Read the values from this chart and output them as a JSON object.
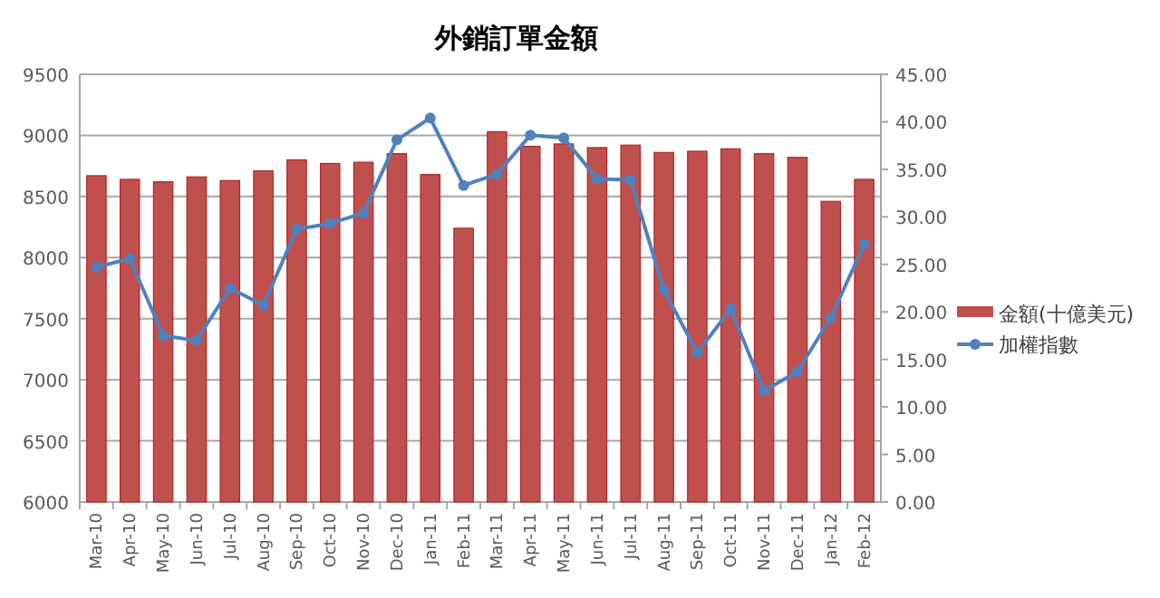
{
  "chart_data": {
    "type": "bar",
    "title": "外銷訂單金額",
    "categories": [
      "Mar-10",
      "Apr-10",
      "May-10",
      "Jun-10",
      "Jul-10",
      "Aug-10",
      "Sep-10",
      "Oct-10",
      "Nov-10",
      "Dec-10",
      "Jan-11",
      "Feb-11",
      "Mar-11",
      "Apr-11",
      "May-11",
      "Jun-11",
      "Jul-11",
      "Aug-11",
      "Sep-11",
      "Oct-11",
      "Nov-11",
      "Dec-11",
      "Jan-12",
      "Feb-12"
    ],
    "series": [
      {
        "name": "金額(十億美元)",
        "color": "#c0504d",
        "values": [
          8670,
          8640,
          8620,
          8660,
          8630,
          8710,
          8800,
          8770,
          8780,
          8850,
          8680,
          8240,
          9030,
          8910,
          8930,
          8900,
          8920,
          8860,
          8870,
          8890,
          8850,
          8820,
          8460,
          8640
        ]
      },
      {
        "name": "加權指數",
        "type": "line",
        "axis": "y2",
        "color": "#4f81bd",
        "values": [
          24.7,
          25.6,
          17.5,
          17.0,
          22.5,
          20.7,
          28.7,
          29.3,
          30.4,
          38.1,
          40.4,
          33.3,
          34.5,
          38.6,
          38.3,
          34.0,
          33.9,
          22.3,
          15.7,
          20.3,
          11.7,
          13.7,
          19.4,
          27.1
        ]
      }
    ],
    "ylim": [
      6000,
      9500
    ],
    "yticks": [
      6000,
      6500,
      7000,
      7500,
      8000,
      8500,
      9000,
      9500
    ],
    "y2lim": [
      0,
      45
    ],
    "y2ticks": [
      {
        "value": 0,
        "label": "0.00"
      },
      {
        "value": 5,
        "label": "5.00"
      },
      {
        "value": 10,
        "label": "10.00"
      },
      {
        "value": 15,
        "label": "15.00"
      },
      {
        "value": 20,
        "label": "20.00"
      },
      {
        "value": 25,
        "label": "25.00"
      },
      {
        "value": 30,
        "label": "30.00"
      },
      {
        "value": 35,
        "label": "35.00"
      },
      {
        "value": 40,
        "label": "40.00"
      },
      {
        "value": 45,
        "label": "45.00"
      }
    ],
    "grid": "y",
    "legend": "right",
    "marker": "circle"
  }
}
